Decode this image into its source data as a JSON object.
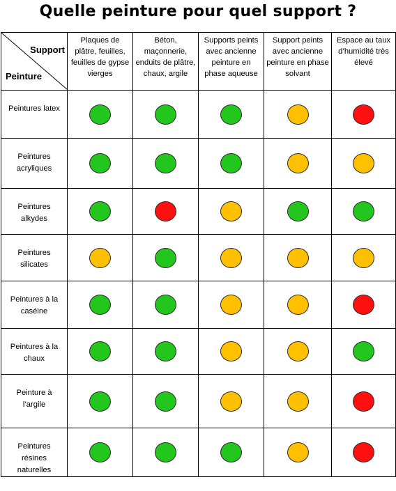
{
  "title": "Quelle peinture pour quel support ?",
  "corner": {
    "columns_label": "Support",
    "rows_label": "Peinture"
  },
  "columns": [
    "Plaques de plâtre, feuilles, feuilles de gypse vierges",
    "Béton, maçonnerie, enduits de plâtre, chaux, argile",
    "Supports peints avec ancienne peinture en phase aqueuse",
    "Support peints avec ancienne peinture en phase solvant",
    "Espace au taux d’humidité très élevé"
  ],
  "rows": [
    {
      "label": "Peintures latex",
      "ratings": [
        "green",
        "green",
        "green",
        "yellow",
        "red"
      ]
    },
    {
      "label": "Peintures acryliques",
      "ratings": [
        "green",
        "green",
        "green",
        "yellow",
        "yellow"
      ]
    },
    {
      "label": "Peintures alkydes",
      "ratings": [
        "green",
        "red",
        "yellow",
        "green",
        "green"
      ]
    },
    {
      "label": "Peintures silicates",
      "ratings": [
        "yellow",
        "green",
        "yellow",
        "yellow",
        "yellow"
      ]
    },
    {
      "label": "Peintures à la caséine",
      "ratings": [
        "green",
        "green",
        "yellow",
        "yellow",
        "red"
      ]
    },
    {
      "label": "Peintures à la chaux",
      "ratings": [
        "green",
        "green",
        "yellow",
        "yellow",
        "green"
      ]
    },
    {
      "label": "Peinture à l’argile",
      "ratings": [
        "green",
        "green",
        "yellow",
        "yellow",
        "red"
      ]
    },
    {
      "label": "Peintures résines naturelles",
      "ratings": [
        "green",
        "green",
        "green",
        "yellow",
        "red"
      ]
    }
  ],
  "colors": {
    "green": "#22c61c",
    "yellow": "#ffc000",
    "red": "#ff1010"
  }
}
